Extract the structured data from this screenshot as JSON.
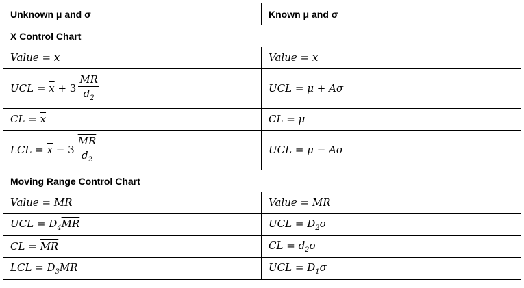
{
  "header": {
    "unknown": "Unknown μ and σ",
    "known": "Known μ and σ"
  },
  "sections": [
    {
      "title": "X Control Chart",
      "rows": [
        {
          "unknown": [
            {
              "i": "Value"
            },
            {
              "r": " = "
            },
            {
              "i": "x"
            }
          ],
          "known": [
            {
              "i": "Value"
            },
            {
              "r": " = "
            },
            {
              "i": "x"
            }
          ]
        },
        {
          "tall": true,
          "unknown": [
            {
              "i": "UCL"
            },
            {
              "r": " = "
            },
            {
              "ov": "x"
            },
            {
              "r": " + 3"
            },
            {
              "frac": {
                "num": [
                  {
                    "ov": "MR"
                  }
                ],
                "den": [
                  {
                    "i": "d"
                  },
                  {
                    "sub": "2"
                  }
                ]
              }
            }
          ],
          "known": [
            {
              "i": "UCL"
            },
            {
              "r": " = "
            },
            {
              "i": "μ"
            },
            {
              "r": " + "
            },
            {
              "i": "Aσ"
            }
          ]
        },
        {
          "unknown": [
            {
              "i": "CL"
            },
            {
              "r": " = "
            },
            {
              "ov": "x"
            }
          ],
          "known": [
            {
              "i": "CL"
            },
            {
              "r": " = "
            },
            {
              "i": "μ"
            }
          ]
        },
        {
          "tall": true,
          "unknown": [
            {
              "i": "LCL"
            },
            {
              "r": " = "
            },
            {
              "ov": "x"
            },
            {
              "r": " − 3"
            },
            {
              "frac": {
                "num": [
                  {
                    "ov": "MR"
                  }
                ],
                "den": [
                  {
                    "i": "d"
                  },
                  {
                    "sub": "2"
                  }
                ]
              }
            }
          ],
          "known": [
            {
              "i": "UCL"
            },
            {
              "r": " = "
            },
            {
              "i": "μ"
            },
            {
              "r": " − "
            },
            {
              "i": "Aσ"
            }
          ]
        }
      ]
    },
    {
      "title": "Moving Range Control Chart",
      "rows": [
        {
          "unknown": [
            {
              "i": "Value"
            },
            {
              "r": " = "
            },
            {
              "i": "MR"
            }
          ],
          "known": [
            {
              "i": "Value"
            },
            {
              "r": " = "
            },
            {
              "i": "MR"
            }
          ]
        },
        {
          "unknown": [
            {
              "i": "UCL"
            },
            {
              "r": " = "
            },
            {
              "i": "D"
            },
            {
              "sub": "4"
            },
            {
              "ov": "MR"
            }
          ],
          "known": [
            {
              "i": "UCL"
            },
            {
              "r": " = "
            },
            {
              "i": "D"
            },
            {
              "sub": "2"
            },
            {
              "i": "σ"
            }
          ]
        },
        {
          "unknown": [
            {
              "i": "CL"
            },
            {
              "r": " = "
            },
            {
              "ov": "MR"
            }
          ],
          "known": [
            {
              "i": "CL"
            },
            {
              "r": " = "
            },
            {
              "i": "d"
            },
            {
              "sub": "2"
            },
            {
              "i": "σ"
            }
          ]
        },
        {
          "unknown": [
            {
              "i": "LCL"
            },
            {
              "r": " = "
            },
            {
              "i": "D"
            },
            {
              "sub": "3"
            },
            {
              "ov": "MR"
            }
          ],
          "known": [
            {
              "i": "UCL"
            },
            {
              "r": " = "
            },
            {
              "i": "D"
            },
            {
              "sub": "1"
            },
            {
              "i": "σ"
            }
          ]
        }
      ]
    }
  ]
}
